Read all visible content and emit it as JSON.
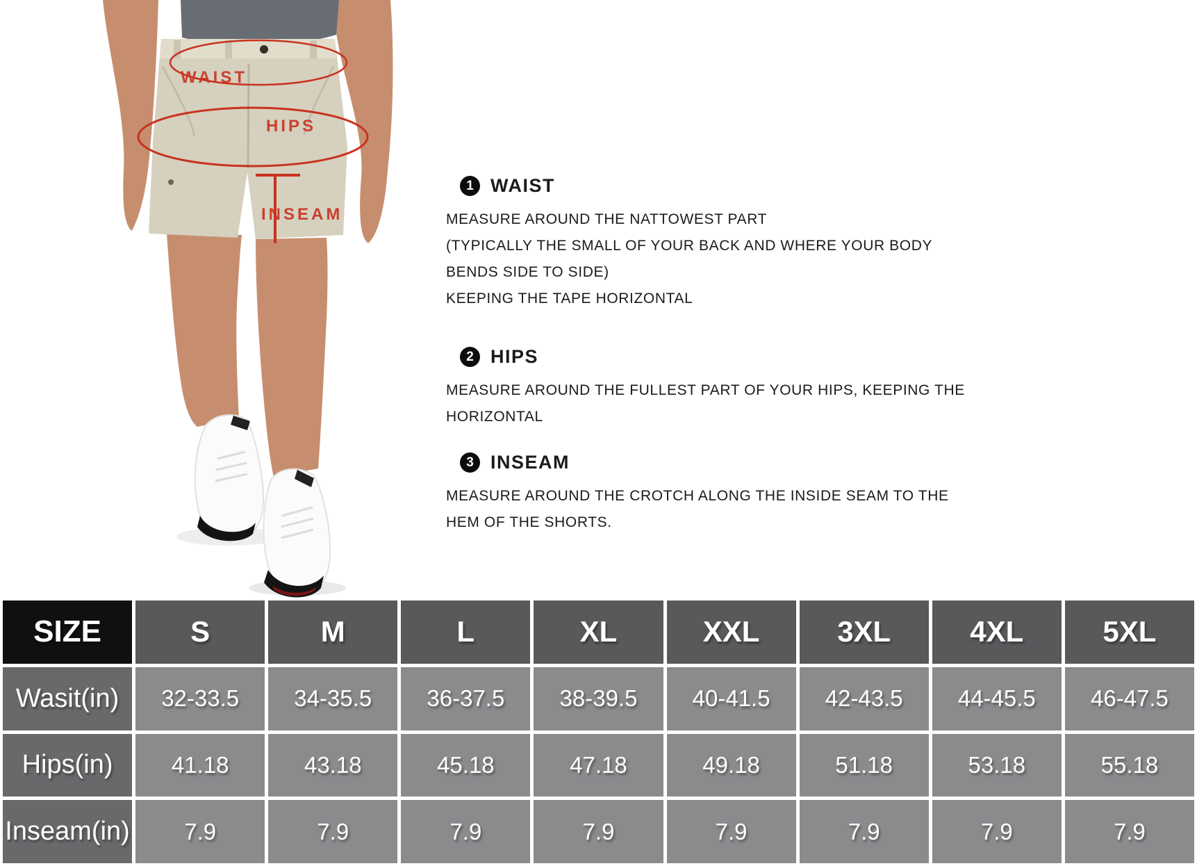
{
  "figure": {
    "labels": {
      "waist": "WAIST",
      "hips": "HIPS",
      "inseam": "INSEAM"
    }
  },
  "instructions": [
    {
      "number": "1",
      "title": "WAIST",
      "lines": [
        "MEASURE AROUND THE NATTOWEST PART",
        "(TYPICALLY THE SMALL OF YOUR BACK AND WHERE YOUR BODY",
        "BENDS SIDE TO SIDE)",
        "KEEPING THE TAPE HORIZONTAL"
      ]
    },
    {
      "number": "2",
      "title": "HIPS",
      "lines": [
        "MEASURE AROUND THE FULLEST PART OF YOUR HIPS, KEEPING THE",
        "HORIZONTAL"
      ]
    },
    {
      "number": "3",
      "title": "INSEAM",
      "lines": [
        "MEASURE AROUND THE CROTCH ALONG THE INSIDE SEAM TO THE",
        "HEM OF THE SHORTS."
      ]
    }
  ],
  "size_table": {
    "header": [
      "SIZE",
      "S",
      "M",
      "L",
      "XL",
      "XXL",
      "3XL",
      "4XL",
      "5XL"
    ],
    "rows": [
      {
        "label": "Wasit(in)",
        "values": [
          "32-33.5",
          "34-35.5",
          "36-37.5",
          "38-39.5",
          "40-41.5",
          "42-43.5",
          "44-45.5",
          "46-47.5"
        ]
      },
      {
        "label": "Hips(in)",
        "values": [
          "41.18",
          "43.18",
          "45.18",
          "47.18",
          "49.18",
          "51.18",
          "53.18",
          "55.18"
        ]
      },
      {
        "label": "Inseam(in)",
        "values": [
          "7.9",
          "7.9",
          "7.9",
          "7.9",
          "7.9",
          "7.9",
          "7.9",
          "7.9"
        ]
      }
    ]
  },
  "colors": {
    "annotation_red": "#c8321f",
    "header_bg": "#59595c",
    "size_bg": "#101012",
    "label_bg": "#69696c",
    "cell_bg": "#8b8b8e",
    "gutter": "#ffffff",
    "table_text": "#ffffff",
    "shorts": "#d6d0bf",
    "waistband": "#e2dccb",
    "skin": "#c68e6f",
    "shirt": "#676d73"
  }
}
